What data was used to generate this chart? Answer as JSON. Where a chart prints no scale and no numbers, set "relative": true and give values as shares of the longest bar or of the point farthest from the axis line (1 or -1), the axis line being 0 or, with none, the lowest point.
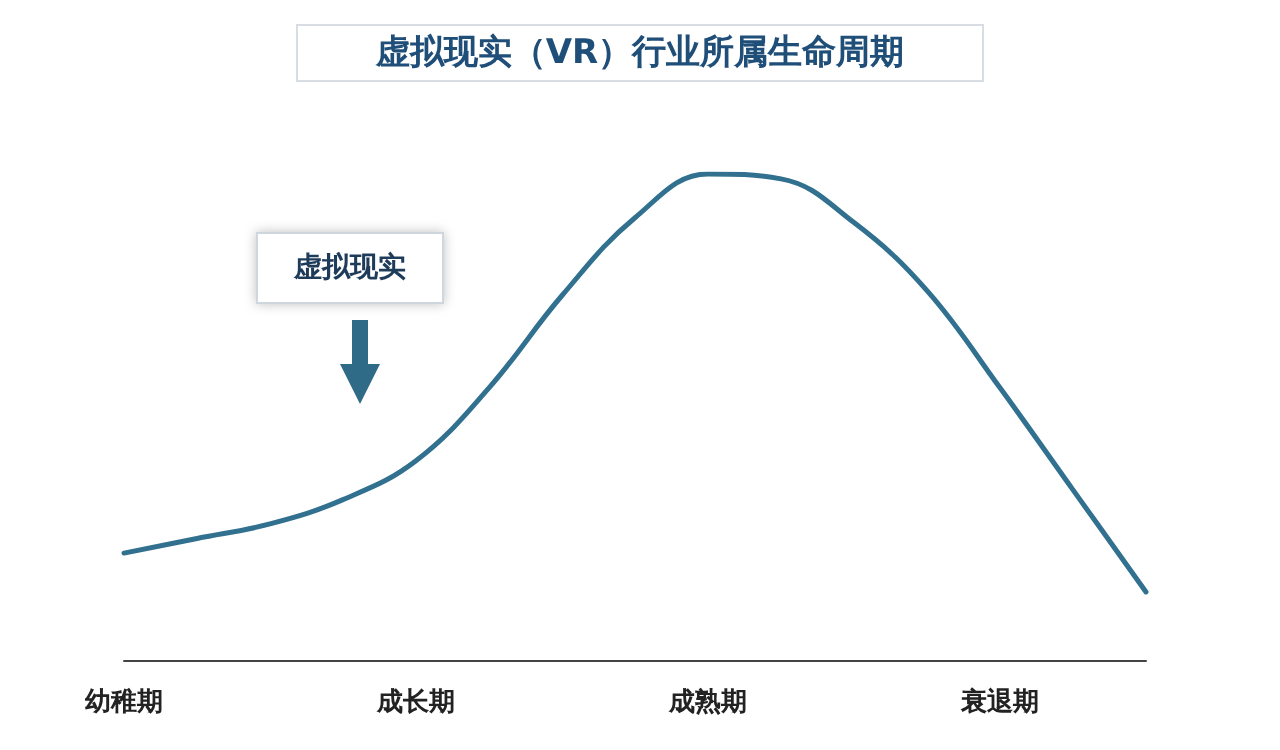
{
  "chart_data": {
    "type": "line",
    "title": "虚拟现实（VR）行业所属生命周期",
    "relative": true,
    "categories": [
      "幼稚期",
      null,
      null,
      null,
      "成长期",
      null,
      null,
      null,
      "成熟期",
      null,
      null,
      null,
      "衰退期",
      null,
      null
    ],
    "series": [
      {
        "color": "#31708f",
        "values": [
          0.22,
          0.25,
          0.28,
          0.33,
          0.41,
          0.56,
          0.75,
          0.91,
          1,
          0.99,
          0.9,
          0.76,
          0.56,
          0.35,
          0.14
        ]
      }
    ],
    "annotations": [
      "虚拟现实"
    ],
    "marker": "none",
    "grid": false
  }
}
